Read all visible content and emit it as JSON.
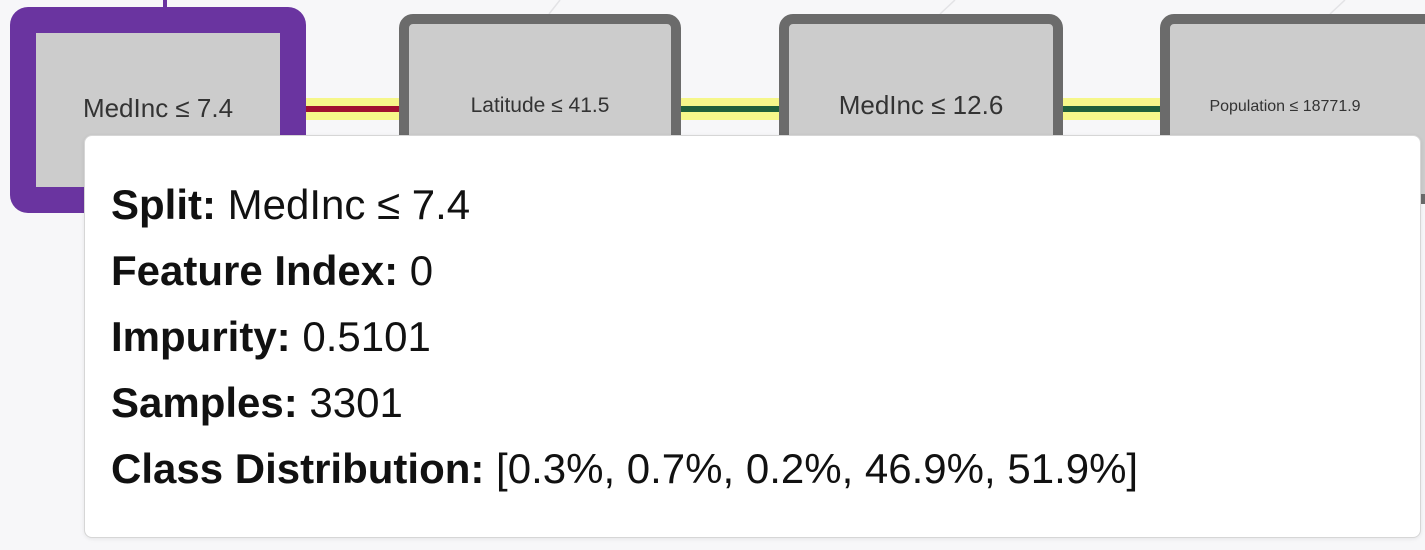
{
  "colors": {
    "selected_node_border": "#6a34a0",
    "node_border": "#6b6b6b",
    "node_fill": "#cccccc",
    "edge_highlight": "#f6f78a",
    "edge_root": "#a01030",
    "edge_child": "#1f5f3a"
  },
  "nodes": [
    {
      "label": "MedInc ≤ 7.4",
      "selected": true
    },
    {
      "label": "Latitude ≤ 41.5",
      "selected": false
    },
    {
      "label": "MedInc ≤ 12.6",
      "selected": false
    },
    {
      "label": "Population ≤ 18771.9",
      "selected": false
    }
  ],
  "tooltip": {
    "split_label": "Split:",
    "split_value": "MedInc ≤ 7.4",
    "feature_index_label": "Feature Index:",
    "feature_index_value": "0",
    "impurity_label": "Impurity:",
    "impurity_value": "0.5101",
    "samples_label": "Samples:",
    "samples_value": "3301",
    "class_distribution_label": "Class Distribution:",
    "class_distribution_value": "[0.3%, 0.7%, 0.2%, 46.9%, 51.9%]"
  }
}
